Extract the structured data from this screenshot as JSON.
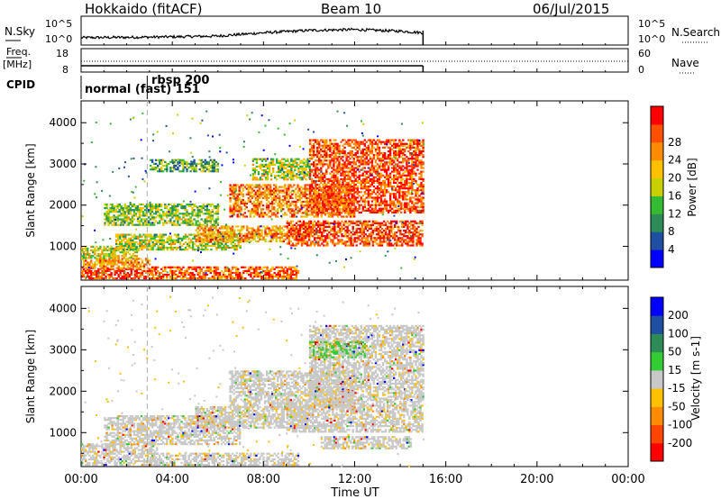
{
  "header": {
    "station": "Hokkaido (fitACF)",
    "beam": "Beam 10",
    "date": "06/Jul/2015"
  },
  "side_labels": {
    "nsky": "N.Sky",
    "nsearch": "N.Search",
    "freq_top": "Freq.",
    "freq_unit": "[MHz]",
    "nave": "Nave",
    "cpid": "CPID",
    "nsky_tick_hi": "10^5",
    "nsky_tick_lo": "10^0",
    "nsearch_tick_hi": "10^5",
    "nsearch_tick_lo": "10^0",
    "freq_tick_hi": "18",
    "freq_tick_lo": "8",
    "nave_tick_hi": "60",
    "nave_tick_lo": "0"
  },
  "cpid_segments": [
    "normal (fast) 151",
    "rbsp 200"
  ],
  "colors": {
    "power_scale": [
      "#0000ff",
      "#1f4fa0",
      "#2e8b57",
      "#33bb33",
      "#c8d000",
      "#ffc000",
      "#ff8c00",
      "#ff5000",
      "#ff0000"
    ],
    "velocity_scale": [
      "#ff0000",
      "#ff4500",
      "#ff8c00",
      "#ffc000",
      "#c8c8c8",
      "#33cc33",
      "#2e8b57",
      "#1f4fa0",
      "#0000ff"
    ]
  },
  "chart_data": [
    {
      "type": "heatmap",
      "name": "power",
      "ylabel": "Slant Range [km]",
      "yticks": [
        "1000",
        "2000",
        "3000",
        "4000"
      ],
      "ylim": [
        180,
        4530
      ],
      "xlim_hours": [
        0,
        24
      ],
      "colorbar_label": "Power [dB]",
      "colorbar_ticks": [
        "4",
        "8",
        "12",
        "16",
        "20",
        "24",
        "28"
      ],
      "bands": [
        {
          "t": [
            0.0,
            3.3
          ],
          "r": [
            200,
            450
          ],
          "level": 0.9
        },
        {
          "t": [
            0.0,
            3.0
          ],
          "r": [
            450,
            700
          ],
          "level": 0.7
        },
        {
          "t": [
            0.0,
            2.5
          ],
          "r": [
            700,
            1000
          ],
          "level": 0.55
        },
        {
          "t": [
            3.0,
            9.5
          ],
          "r": [
            200,
            500
          ],
          "level": 0.8
        },
        {
          "t": [
            1.5,
            7.0
          ],
          "r": [
            900,
            1300
          ],
          "level": 0.5
        },
        {
          "t": [
            5.0,
            10.0
          ],
          "r": [
            1100,
            1500
          ],
          "level": 0.7
        },
        {
          "t": [
            1.0,
            6.0
          ],
          "r": [
            1500,
            2000
          ],
          "level": 0.45
        },
        {
          "t": [
            6.5,
            12.0
          ],
          "r": [
            1700,
            2500
          ],
          "level": 0.75
        },
        {
          "t": [
            9.0,
            15.0
          ],
          "r": [
            1000,
            1600
          ],
          "level": 0.85
        },
        {
          "t": [
            10.0,
            15.0
          ],
          "r": [
            1800,
            3600
          ],
          "level": 0.85
        },
        {
          "t": [
            3.0,
            6.0
          ],
          "r": [
            2800,
            3100
          ],
          "level": 0.35
        },
        {
          "t": [
            7.5,
            10.0
          ],
          "r": [
            2600,
            3100
          ],
          "level": 0.5
        }
      ]
    },
    {
      "type": "heatmap",
      "name": "velocity",
      "ylabel": "Slant Range [km]",
      "yticks": [
        "1000",
        "2000",
        "3000",
        "4000"
      ],
      "ylim": [
        180,
        4530
      ],
      "xlim_hours": [
        0,
        24
      ],
      "xticks": [
        "00:00",
        "04:00",
        "08:00",
        "12:00",
        "16:00",
        "20:00",
        "00:00"
      ],
      "xlabel": "Time UT",
      "colorbar_label": "Velocity [m s-1]",
      "colorbar_ticks": [
        "200",
        "100",
        "50",
        "15",
        "-15",
        "-50",
        "-100",
        "-200"
      ],
      "bands": [
        {
          "t": [
            0.0,
            3.3
          ],
          "r": [
            200,
            700
          ],
          "level": 0.5
        },
        {
          "t": [
            3.0,
            9.5
          ],
          "r": [
            200,
            500
          ],
          "level": 0.5
        },
        {
          "t": [
            1.0,
            7.0
          ],
          "r": [
            700,
            1400
          ],
          "level": 0.5
        },
        {
          "t": [
            5.0,
            10.0
          ],
          "r": [
            1100,
            1600
          ],
          "level": 0.5
        },
        {
          "t": [
            6.5,
            12.0
          ],
          "r": [
            1600,
            2500
          ],
          "level": 0.5
        },
        {
          "t": [
            9.0,
            15.0
          ],
          "r": [
            1000,
            1800
          ],
          "level": 0.5
        },
        {
          "t": [
            10.0,
            15.0
          ],
          "r": [
            1800,
            3600
          ],
          "level": 0.5
        },
        {
          "t": [
            10.0,
            12.5
          ],
          "r": [
            2800,
            3200
          ],
          "level": 0.7
        },
        {
          "t": [
            10.5,
            14.5
          ],
          "r": [
            600,
            900
          ],
          "level": 0.3
        }
      ]
    }
  ],
  "timeseries": {
    "nsky_hours": [
      0,
      2,
      4,
      6,
      8,
      10,
      12,
      14,
      15
    ],
    "nsky_level": [
      0.15,
      0.17,
      0.2,
      0.25,
      0.45,
      0.6,
      0.65,
      0.55,
      0.45
    ],
    "end_hour": 15,
    "cpid_change_hour": 2.9
  }
}
